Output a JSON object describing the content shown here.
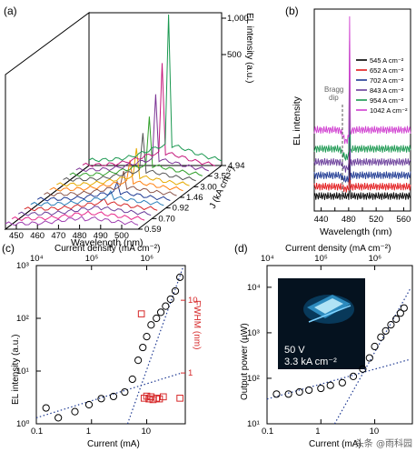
{
  "panel_labels": [
    "(a)",
    "(b)",
    "(c)",
    "(d)"
  ],
  "watermark": "头条 @雨科园",
  "chart_data": [
    {
      "type": "line",
      "panel": "(a)",
      "xlabel": "Wavelength (nm)",
      "xticks": [
        "450",
        "460",
        "470",
        "480",
        "490",
        "500"
      ],
      "zlabel": "EL intensity (a.u.)",
      "zticks": [
        "500",
        "1,000"
      ],
      "ylabel": "J (kA cm⁻²)",
      "yticks": [
        "0.59",
        "0.70",
        "0.92",
        "1.46",
        "3.00",
        "3.52",
        "4.94"
      ],
      "colors": [
        "#9e3fb0",
        "#e7298a",
        "#6a3d9a",
        "#d62728",
        "#2c7fb8",
        "#1f3a93",
        "#8c564b",
        "#ff7f0e",
        "#e6ab02",
        "#555555",
        "#33a02c",
        "#7b3294",
        "#c51b7d",
        "#1a9850"
      ],
      "peak_heights": [
        0.02,
        0.03,
        0.05,
        0.07,
        0.09,
        0.12,
        0.16,
        0.2,
        0.25,
        0.32,
        0.4,
        0.52,
        0.7,
        1.0
      ]
    },
    {
      "type": "line",
      "panel": "(b)",
      "xlabel": "Wavelength (nm)",
      "ylabel": "EL  intensity",
      "xticks": [
        "440",
        "460",
        "480",
        "500",
        "520",
        "540",
        "560"
      ],
      "xlim": [
        430,
        570
      ],
      "annotation": [
        "Bragg",
        "dip"
      ],
      "series": [
        {
          "name": "545 A cm⁻²",
          "color": "#000000",
          "level": 0.05
        },
        {
          "name": "652 A cm⁻²",
          "color": "#e31a1c",
          "level": 0.1
        },
        {
          "name": "702 A cm⁻²",
          "color": "#1f3a93",
          "level": 0.16
        },
        {
          "name": "843 A cm⁻²",
          "color": "#6a3d9a",
          "level": 0.23
        },
        {
          "name": "954 A cm⁻²",
          "color": "#1a9850",
          "level": 0.3
        },
        {
          "name": "1042 A cm⁻²",
          "color": "#d03fd0",
          "level": 0.4
        }
      ],
      "peak_wavelength": 481,
      "dip_wavelength": 476
    },
    {
      "type": "scatter",
      "panel": "(c)",
      "xlabel": "Current (mA)",
      "top_xlabel": "Current density (mA cm⁻²)",
      "ylabel": "EL intensity (a.u.)",
      "y2label": "FWHM (nm)",
      "xlim": [
        0.1,
        50
      ],
      "ylim": [
        1,
        1000
      ],
      "y2lim": [
        0.2,
        30
      ],
      "xscale": "log",
      "yscale": "log",
      "y2_color": "#d62728",
      "xticks": [
        "0.1",
        "1",
        "10"
      ],
      "top_ticks": [
        "10⁴",
        "10⁵",
        "10⁶"
      ],
      "yticks": [
        "10⁰",
        "10¹",
        "10²",
        "10³"
      ],
      "y2ticks": [
        "1",
        "10"
      ],
      "el_intensity": {
        "x": [
          0.15,
          0.25,
          0.5,
          0.9,
          1.5,
          2.5,
          4,
          5.5,
          7,
          8.5,
          10,
          12,
          15,
          18,
          22,
          27,
          33,
          40
        ],
        "y": [
          2.0,
          1.3,
          1.7,
          2.3,
          3,
          3.3,
          4,
          7,
          16,
          28,
          45,
          75,
          100,
          130,
          170,
          230,
          330,
          600
        ]
      },
      "fwhm": {
        "x": [
          8,
          9,
          10,
          11,
          12,
          13,
          15,
          17,
          20,
          40
        ],
        "y": [
          6.5,
          0.45,
          0.48,
          0.44,
          0.47,
          0.43,
          0.45,
          0.44,
          0.47,
          0.45
        ]
      }
    },
    {
      "type": "scatter",
      "panel": "(d)",
      "xlabel": "Current (mA)",
      "top_xlabel": "Current density (mA cm⁻²)",
      "ylabel": "Output power (µW)",
      "xlim": [
        0.1,
        50
      ],
      "ylim": [
        10,
        30000
      ],
      "xscale": "log",
      "yscale": "log",
      "xticks": [
        "0.1",
        "1",
        "10"
      ],
      "top_ticks": [
        "10⁴",
        "10⁵",
        "10⁶"
      ],
      "yticks": [
        "10¹",
        "10²",
        "10³",
        "10⁴"
      ],
      "x": [
        0.15,
        0.25,
        0.4,
        0.6,
        1,
        1.5,
        2.5,
        4,
        6,
        8,
        10,
        13,
        16,
        20,
        25,
        30,
        35
      ],
      "y": [
        45,
        45,
        50,
        55,
        60,
        70,
        80,
        110,
        160,
        280,
        500,
        800,
        1100,
        1500,
        2000,
        2700,
        3500
      ],
      "inset": {
        "line1": "50 V",
        "line2": "3.3 kA cm⁻²"
      }
    }
  ]
}
